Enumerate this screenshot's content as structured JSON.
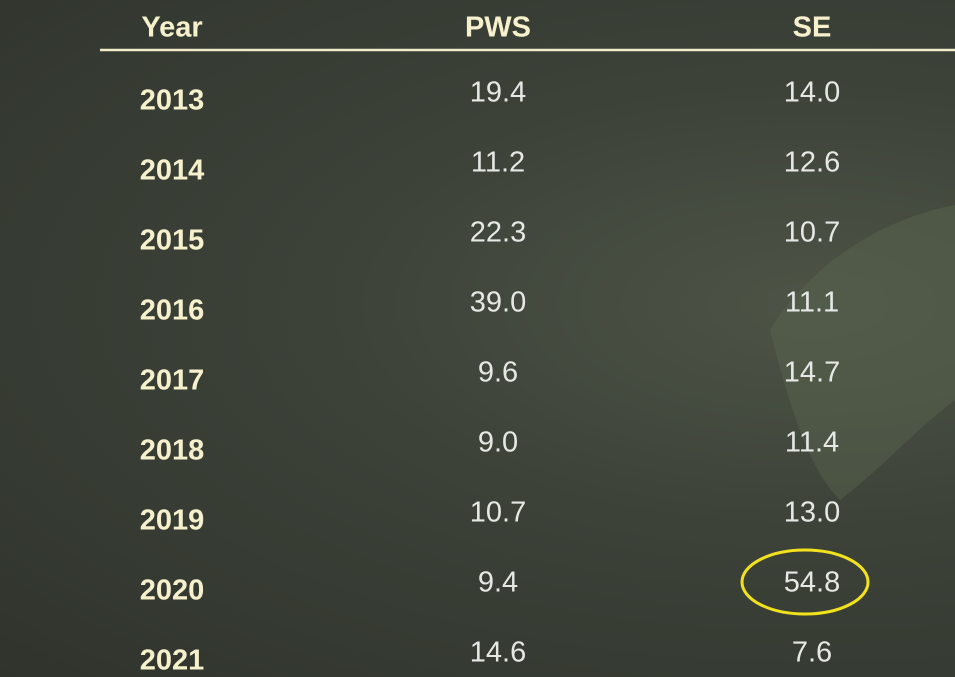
{
  "table": {
    "header": [
      "Year",
      "PWS",
      "SE"
    ],
    "rows": [
      [
        "2013",
        "19.4",
        "14.0"
      ],
      [
        "2014",
        "11.2",
        "12.6"
      ],
      [
        "2015",
        "22.3",
        "10.7"
      ],
      [
        "2016",
        "39.0",
        "11.1"
      ],
      [
        "2017",
        "9.6",
        "14.7"
      ],
      [
        "2018",
        "9.0",
        "11.4"
      ],
      [
        "2019",
        "10.7",
        "13.0"
      ],
      [
        "2020",
        "9.4",
        "54.8"
      ],
      [
        "2021",
        "14.6",
        "7.6"
      ]
    ]
  }
}
